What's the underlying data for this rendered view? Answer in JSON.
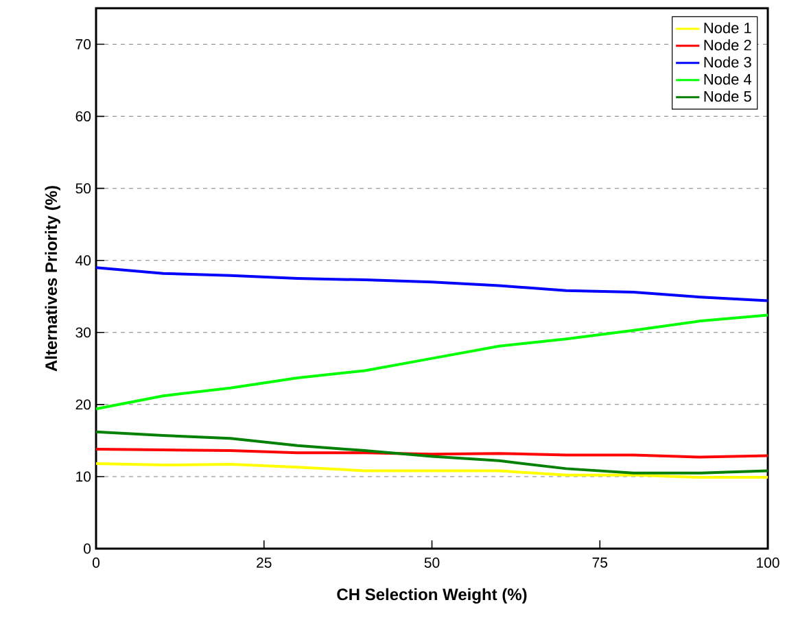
{
  "chart_data": {
    "type": "line",
    "xlabel": "CH Selection Weight (%)",
    "ylabel": "Alternatives Priority (%)",
    "x": [
      0,
      10,
      20,
      30,
      40,
      50,
      60,
      70,
      80,
      90,
      100
    ],
    "series": [
      {
        "name": "Node 1",
        "color": "#ffff00",
        "values": [
          11.8,
          11.6,
          11.7,
          11.3,
          10.8,
          10.8,
          10.8,
          10.2,
          10.2,
          9.9,
          9.9
        ]
      },
      {
        "name": "Node 2",
        "color": "#ff0000",
        "values": [
          13.8,
          13.7,
          13.6,
          13.3,
          13.3,
          13.1,
          13.2,
          13.0,
          13.0,
          12.7,
          12.9
        ]
      },
      {
        "name": "Node 3",
        "color": "#0000ff",
        "values": [
          39.0,
          38.2,
          37.9,
          37.5,
          37.3,
          37.0,
          36.5,
          35.8,
          35.6,
          34.9,
          34.4
        ]
      },
      {
        "name": "Node 4",
        "color": "#00ff00",
        "values": [
          19.4,
          21.2,
          22.3,
          23.7,
          24.7,
          26.4,
          28.1,
          29.1,
          30.3,
          31.6,
          32.4
        ]
      },
      {
        "name": "Node 5",
        "color": "#008000",
        "values": [
          16.2,
          15.7,
          15.3,
          14.3,
          13.6,
          12.8,
          12.2,
          11.1,
          10.5,
          10.5,
          10.8
        ]
      }
    ],
    "xlim": [
      0,
      100
    ],
    "ylim": [
      0,
      75
    ],
    "xticks": [
      0,
      25,
      50,
      75,
      100
    ],
    "yticks": [
      0,
      10,
      20,
      30,
      40,
      50,
      60,
      70
    ],
    "grid": "y",
    "legend": "top right",
    "marker": "none",
    "line_style": "solid"
  }
}
